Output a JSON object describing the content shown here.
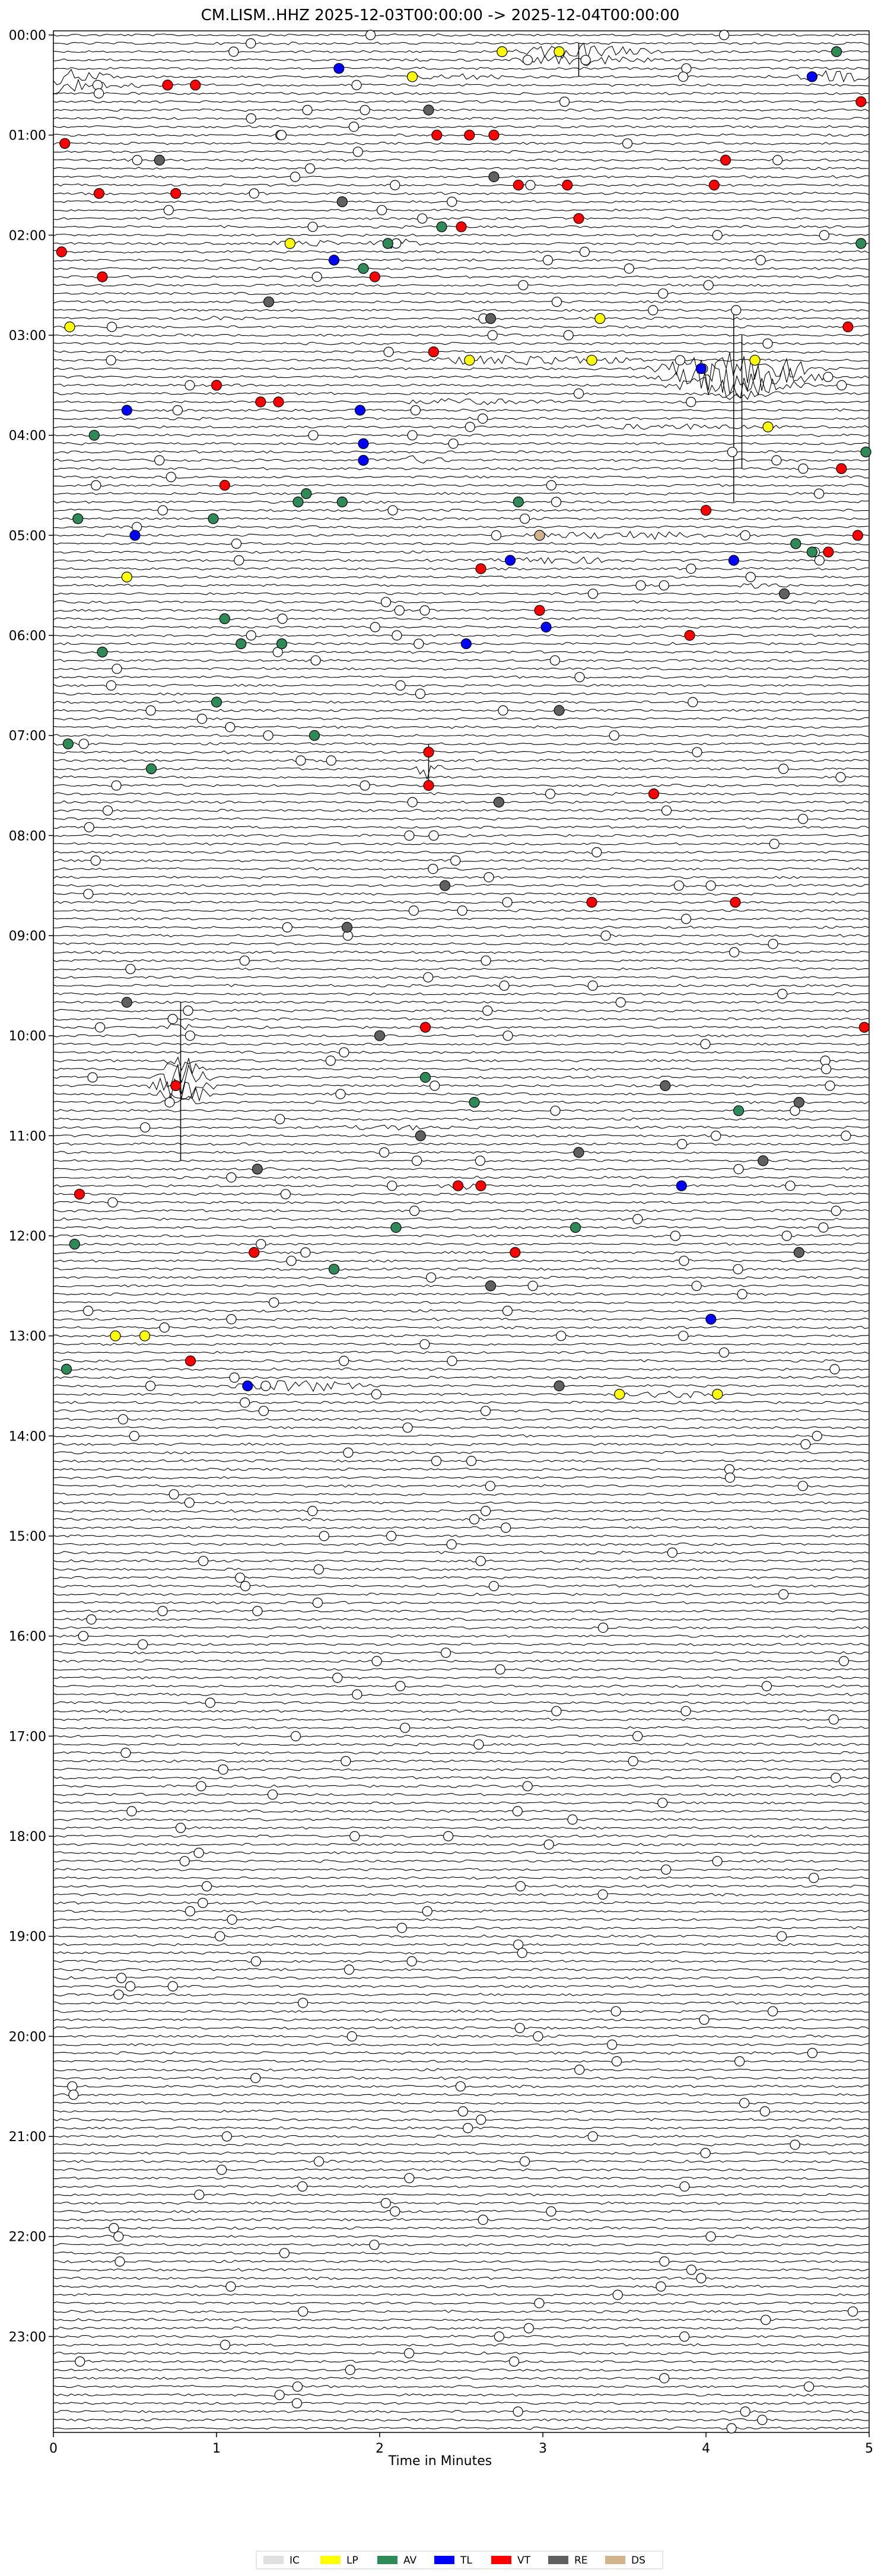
{
  "chart_data": {
    "type": "helicorder",
    "title": "CM.LISM..HHZ  2025-12-03T00:00:00 -> 2025-12-04T00:00:00",
    "xlabel": "Time in Minutes",
    "ylabel": "",
    "xlim": [
      0,
      5
    ],
    "x_ticks": [
      "0",
      "1",
      "2",
      "3",
      "4",
      "5"
    ],
    "y_ticks": [
      "00:00",
      "01:00",
      "02:00",
      "03:00",
      "04:00",
      "05:00",
      "06:00",
      "07:00",
      "08:00",
      "09:00",
      "10:00",
      "11:00",
      "12:00",
      "13:00",
      "14:00",
      "15:00",
      "16:00",
      "17:00",
      "18:00",
      "19:00",
      "20:00",
      "21:00",
      "22:00",
      "23:00"
    ],
    "rows_per_hour": 12,
    "total_rows": 288,
    "legend": [
      {
        "code": "IC",
        "color": "#e0e0e0"
      },
      {
        "code": "LP",
        "color": "#ffff00"
      },
      {
        "code": "AV",
        "color": "#2e8b57"
      },
      {
        "code": "TL",
        "color": "#0000ff"
      },
      {
        "code": "VT",
        "color": "#ff0000"
      },
      {
        "code": "RE",
        "color": "#606060"
      },
      {
        "code": "DS",
        "color": "#d2b48c"
      }
    ],
    "event_classes": {
      "unclassified": "#ffffff",
      "LP": "#ffff00",
      "AV": "#2e8b57",
      "TL": "#0000ff",
      "VT": "#ff0000",
      "RE": "#606060",
      "DS": "#d2b48c"
    },
    "marker_stats": {
      "unclassified": 0.55,
      "LP": 0.03,
      "AV": 0.12,
      "TL": 0.05,
      "VT": 0.13,
      "RE": 0.12,
      "DS": 0.0
    },
    "events": [
      {
        "row": 2,
        "x": 3.1,
        "class": "LP"
      },
      {
        "row": 2,
        "x": 2.75,
        "class": "LP"
      },
      {
        "row": 2,
        "x": 4.8,
        "class": "AV"
      },
      {
        "row": 4,
        "x": 1.75,
        "class": "TL"
      },
      {
        "row": 5,
        "x": 2.2,
        "class": "LP"
      },
      {
        "row": 5,
        "x": 4.65,
        "class": "TL"
      },
      {
        "row": 6,
        "x": 0.7,
        "class": "VT"
      },
      {
        "row": 6,
        "x": 0.87,
        "class": "VT"
      },
      {
        "row": 8,
        "x": 4.95,
        "class": "VT"
      },
      {
        "row": 9,
        "x": 2.3,
        "class": "RE"
      },
      {
        "row": 12,
        "x": 2.35,
        "class": "VT"
      },
      {
        "row": 12,
        "x": 2.55,
        "class": "VT"
      },
      {
        "row": 12,
        "x": 2.7,
        "class": "VT"
      },
      {
        "row": 13,
        "x": 0.07,
        "class": "VT"
      },
      {
        "row": 15,
        "x": 0.65,
        "class": "RE"
      },
      {
        "row": 15,
        "x": 4.12,
        "class": "VT"
      },
      {
        "row": 17,
        "x": 2.7,
        "class": "RE"
      },
      {
        "row": 18,
        "x": 2.85,
        "class": "VT"
      },
      {
        "row": 18,
        "x": 3.15,
        "class": "VT"
      },
      {
        "row": 18,
        "x": 4.05,
        "class": "VT"
      },
      {
        "row": 19,
        "x": 0.28,
        "class": "VT"
      },
      {
        "row": 19,
        "x": 0.75,
        "class": "VT"
      },
      {
        "row": 20,
        "x": 1.77,
        "class": "RE"
      },
      {
        "row": 22,
        "x": 3.22,
        "class": "VT"
      },
      {
        "row": 23,
        "x": 2.38,
        "class": "AV"
      },
      {
        "row": 23,
        "x": 2.5,
        "class": "VT"
      },
      {
        "row": 25,
        "x": 1.45,
        "class": "LP"
      },
      {
        "row": 25,
        "x": 2.05,
        "class": "AV"
      },
      {
        "row": 25,
        "x": 4.95,
        "class": "AV"
      },
      {
        "row": 26,
        "x": 0.05,
        "class": "VT"
      },
      {
        "row": 27,
        "x": 1.72,
        "class": "TL"
      },
      {
        "row": 28,
        "x": 1.9,
        "class": "AV"
      },
      {
        "row": 29,
        "x": 0.3,
        "class": "VT"
      },
      {
        "row": 29,
        "x": 1.97,
        "class": "VT"
      },
      {
        "row": 32,
        "x": 1.32,
        "class": "RE"
      },
      {
        "row": 34,
        "x": 2.68,
        "class": "RE"
      },
      {
        "row": 34,
        "x": 3.35,
        "class": "LP"
      },
      {
        "row": 35,
        "x": 0.1,
        "class": "LP"
      },
      {
        "row": 35,
        "x": 4.87,
        "class": "VT"
      },
      {
        "row": 38,
        "x": 2.33,
        "class": "VT"
      },
      {
        "row": 39,
        "x": 2.55,
        "class": "LP"
      },
      {
        "row": 39,
        "x": 3.3,
        "class": "LP"
      },
      {
        "row": 39,
        "x": 4.3,
        "class": "LP"
      },
      {
        "row": 40,
        "x": 3.97,
        "class": "TL"
      },
      {
        "row": 42,
        "x": 1.0,
        "class": "VT"
      },
      {
        "row": 44,
        "x": 1.27,
        "class": "VT"
      },
      {
        "row": 44,
        "x": 1.38,
        "class": "VT"
      },
      {
        "row": 45,
        "x": 0.45,
        "class": "TL"
      },
      {
        "row": 45,
        "x": 1.88,
        "class": "TL"
      },
      {
        "row": 47,
        "x": 4.38,
        "class": "LP"
      },
      {
        "row": 48,
        "x": 0.25,
        "class": "AV"
      },
      {
        "row": 49,
        "x": 1.9,
        "class": "TL"
      },
      {
        "row": 50,
        "x": 4.98,
        "class": "AV"
      },
      {
        "row": 51,
        "x": 1.9,
        "class": "TL"
      },
      {
        "row": 52,
        "x": 4.83,
        "class": "VT"
      },
      {
        "row": 54,
        "x": 1.05,
        "class": "VT"
      },
      {
        "row": 55,
        "x": 1.55,
        "class": "AV"
      },
      {
        "row": 56,
        "x": 1.5,
        "class": "AV"
      },
      {
        "row": 56,
        "x": 1.77,
        "class": "AV"
      },
      {
        "row": 56,
        "x": 2.85,
        "class": "AV"
      },
      {
        "row": 57,
        "x": 4.0,
        "class": "VT"
      },
      {
        "row": 58,
        "x": 0.15,
        "class": "AV"
      },
      {
        "row": 58,
        "x": 0.98,
        "class": "AV"
      },
      {
        "row": 60,
        "x": 0.5,
        "class": "TL"
      },
      {
        "row": 60,
        "x": 2.98,
        "class": "DS"
      },
      {
        "row": 60,
        "x": 4.93,
        "class": "VT"
      },
      {
        "row": 61,
        "x": 4.55,
        "class": "AV"
      },
      {
        "row": 62,
        "x": 4.75,
        "class": "VT"
      },
      {
        "row": 62,
        "x": 4.65,
        "class": "AV"
      },
      {
        "row": 63,
        "x": 4.17,
        "class": "TL"
      },
      {
        "row": 63,
        "x": 2.8,
        "class": "TL"
      },
      {
        "row": 64,
        "x": 2.62,
        "class": "VT"
      },
      {
        "row": 65,
        "x": 0.45,
        "class": "LP"
      },
      {
        "row": 67,
        "x": 4.48,
        "class": "RE"
      },
      {
        "row": 69,
        "x": 2.98,
        "class": "VT"
      },
      {
        "row": 70,
        "x": 1.05,
        "class": "AV"
      },
      {
        "row": 71,
        "x": 3.02,
        "class": "TL"
      },
      {
        "row": 72,
        "x": 3.9,
        "class": "VT"
      },
      {
        "row": 73,
        "x": 1.15,
        "class": "AV"
      },
      {
        "row": 73,
        "x": 1.4,
        "class": "AV"
      },
      {
        "row": 73,
        "x": 2.53,
        "class": "TL"
      },
      {
        "row": 74,
        "x": 0.3,
        "class": "AV"
      },
      {
        "row": 80,
        "x": 1.0,
        "class": "AV"
      },
      {
        "row": 81,
        "x": 3.1,
        "class": "RE"
      },
      {
        "row": 84,
        "x": 1.6,
        "class": "AV"
      },
      {
        "row": 85,
        "x": 0.09,
        "class": "AV"
      },
      {
        "row": 86,
        "x": 2.3,
        "class": "VT"
      },
      {
        "row": 88,
        "x": 0.6,
        "class": "AV"
      },
      {
        "row": 90,
        "x": 2.3,
        "class": "VT"
      },
      {
        "row": 91,
        "x": 3.68,
        "class": "VT"
      },
      {
        "row": 92,
        "x": 2.73,
        "class": "RE"
      },
      {
        "row": 102,
        "x": 2.4,
        "class": "RE"
      },
      {
        "row": 104,
        "x": 3.3,
        "class": "VT"
      },
      {
        "row": 104,
        "x": 4.18,
        "class": "VT"
      },
      {
        "row": 107,
        "x": 1.8,
        "class": "RE"
      },
      {
        "row": 116,
        "x": 0.45,
        "class": "RE"
      },
      {
        "row": 119,
        "x": 2.28,
        "class": "VT"
      },
      {
        "row": 119,
        "x": 4.97,
        "class": "VT"
      },
      {
        "row": 120,
        "x": 2.0,
        "class": "RE"
      },
      {
        "row": 125,
        "x": 2.28,
        "class": "AV"
      },
      {
        "row": 126,
        "x": 0.75,
        "class": "VT"
      },
      {
        "row": 126,
        "x": 3.75,
        "class": "RE"
      },
      {
        "row": 128,
        "x": 2.58,
        "class": "AV"
      },
      {
        "row": 128,
        "x": 4.57,
        "class": "RE"
      },
      {
        "row": 129,
        "x": 4.2,
        "class": "AV"
      },
      {
        "row": 132,
        "x": 2.25,
        "class": "RE"
      },
      {
        "row": 134,
        "x": 3.22,
        "class": "RE"
      },
      {
        "row": 135,
        "x": 4.35,
        "class": "RE"
      },
      {
        "row": 136,
        "x": 1.25,
        "class": "RE"
      },
      {
        "row": 138,
        "x": 2.48,
        "class": "VT"
      },
      {
        "row": 138,
        "x": 2.62,
        "class": "VT"
      },
      {
        "row": 138,
        "x": 3.85,
        "class": "TL"
      },
      {
        "row": 139,
        "x": 0.16,
        "class": "VT"
      },
      {
        "row": 143,
        "x": 2.1,
        "class": "AV"
      },
      {
        "row": 143,
        "x": 3.2,
        "class": "AV"
      },
      {
        "row": 145,
        "x": 0.13,
        "class": "AV"
      },
      {
        "row": 146,
        "x": 1.23,
        "class": "VT"
      },
      {
        "row": 146,
        "x": 2.83,
        "class": "VT"
      },
      {
        "row": 146,
        "x": 4.57,
        "class": "RE"
      },
      {
        "row": 148,
        "x": 1.72,
        "class": "AV"
      },
      {
        "row": 150,
        "x": 2.68,
        "class": "RE"
      },
      {
        "row": 154,
        "x": 4.03,
        "class": "TL"
      },
      {
        "row": 156,
        "x": 0.56,
        "class": "LP"
      },
      {
        "row": 156,
        "x": 0.38,
        "class": "LP"
      },
      {
        "row": 159,
        "x": 0.84,
        "class": "VT"
      },
      {
        "row": 160,
        "x": 0.08,
        "class": "AV"
      },
      {
        "row": 162,
        "x": 1.19,
        "class": "TL"
      },
      {
        "row": 162,
        "x": 3.1,
        "class": "RE"
      },
      {
        "row": 163,
        "x": 3.47,
        "class": "LP"
      },
      {
        "row": 163,
        "x": 4.07,
        "class": "LP"
      }
    ]
  }
}
